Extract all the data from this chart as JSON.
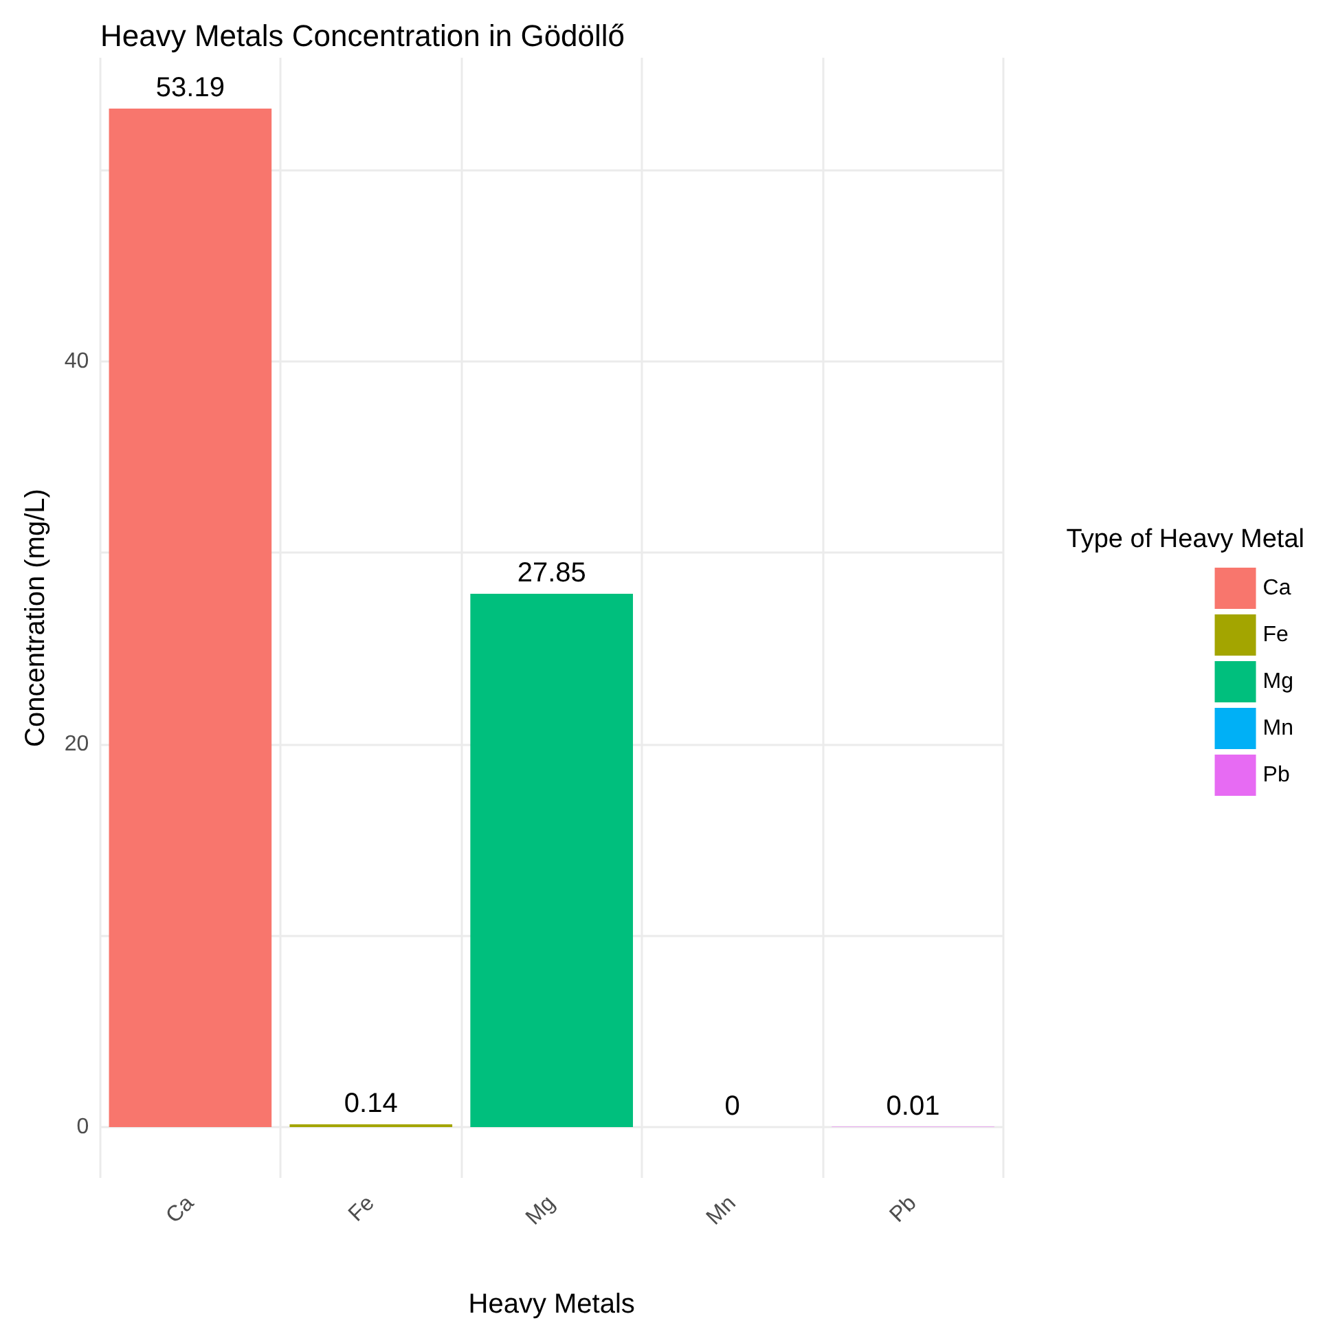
{
  "chart_data": {
    "type": "bar",
    "title": "Heavy Metals Concentration in Gödöllő",
    "xlabel": "Heavy Metals",
    "ylabel": "Concentration (mg/L)",
    "legend_title": "Type of Heavy Metal",
    "categories": [
      "Ca",
      "Fe",
      "Mg",
      "Mn",
      "Pb"
    ],
    "series": [
      {
        "name": "Ca",
        "color": "#f8766d",
        "values": [
          53.19,
          null,
          null,
          null,
          null
        ]
      },
      {
        "name": "Fe",
        "color": "#a3a500",
        "values": [
          null,
          0.14,
          null,
          null,
          null
        ]
      },
      {
        "name": "Mg",
        "color": "#00bf7d",
        "values": [
          null,
          null,
          27.85,
          null,
          null
        ]
      },
      {
        "name": "Mn",
        "color": "#00b0f6",
        "values": [
          null,
          null,
          null,
          0,
          null
        ]
      },
      {
        "name": "Pb",
        "color": "#e76bf3",
        "values": [
          null,
          null,
          null,
          null,
          0.01
        ]
      }
    ],
    "ylim": [
      -2.66,
      55.85
    ],
    "yticks": [
      0,
      {
        "value": 10,
        "label": null
      },
      20,
      {
        "value": 30,
        "label": null
      },
      40,
      {
        "value": 50,
        "label": null
      }
    ],
    "grid": true,
    "legend": "right",
    "data_labels": true
  }
}
